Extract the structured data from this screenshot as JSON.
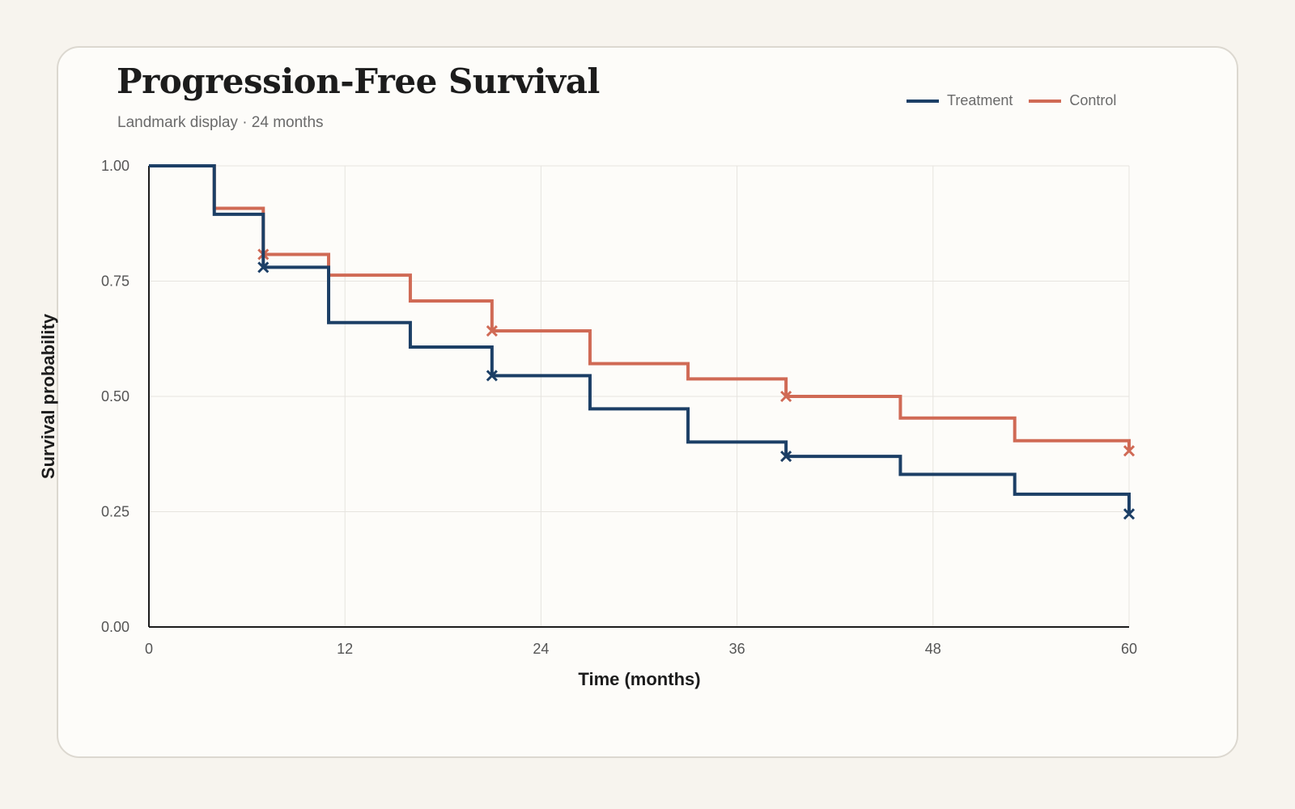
{
  "colors": {
    "background": "#f7f4ee",
    "card": "#fdfcf9",
    "treatment": "#1c3f66",
    "control": "#d06a55",
    "grid": "#e6e4df",
    "axis": "#1c1c1c"
  },
  "chart_data": {
    "type": "line",
    "step": true,
    "title": "Progression-Free Survival",
    "subtitle": "Landmark display · 24 months",
    "xlabel": "Time (months)",
    "ylabel": "Survival probability",
    "xlim": [
      0,
      60
    ],
    "ylim": [
      0,
      1
    ],
    "xticks": [
      "0",
      "12",
      "24",
      "36",
      "48",
      "60"
    ],
    "xtick_values": [
      0,
      12,
      24,
      36,
      48,
      60
    ],
    "yticks": [
      "0.00",
      "0.25",
      "0.50",
      "0.75",
      "1.00"
    ],
    "ytick_values": [
      0,
      0.25,
      0.5,
      0.75,
      1.0
    ],
    "grid": true,
    "legend_position": "top-right",
    "series": [
      {
        "name": "Treatment",
        "color": "#1c3f66",
        "steps": [
          {
            "t": 0,
            "s": 1.0
          },
          {
            "t": 4,
            "s": 0.895
          },
          {
            "t": 7,
            "s": 0.78
          },
          {
            "t": 11,
            "s": 0.66
          },
          {
            "t": 16,
            "s": 0.607
          },
          {
            "t": 21,
            "s": 0.545
          },
          {
            "t": 27,
            "s": 0.473
          },
          {
            "t": 33,
            "s": 0.401
          },
          {
            "t": 39,
            "s": 0.37
          },
          {
            "t": 46,
            "s": 0.331
          },
          {
            "t": 53,
            "s": 0.288
          },
          {
            "t": 60,
            "s": 0.245
          }
        ],
        "censored": [
          {
            "t": 7,
            "s": 0.78
          },
          {
            "t": 21,
            "s": 0.545
          },
          {
            "t": 39,
            "s": 0.37
          },
          {
            "t": 60,
            "s": 0.245
          }
        ]
      },
      {
        "name": "Control",
        "color": "#d06a55",
        "steps": [
          {
            "t": 0,
            "s": 1.0
          },
          {
            "t": 4,
            "s": 0.908
          },
          {
            "t": 7,
            "s": 0.808
          },
          {
            "t": 11,
            "s": 0.763
          },
          {
            "t": 16,
            "s": 0.707
          },
          {
            "t": 21,
            "s": 0.642
          },
          {
            "t": 27,
            "s": 0.571
          },
          {
            "t": 33,
            "s": 0.538
          },
          {
            "t": 39,
            "s": 0.5
          },
          {
            "t": 46,
            "s": 0.453
          },
          {
            "t": 53,
            "s": 0.404
          },
          {
            "t": 60,
            "s": 0.382
          }
        ],
        "censored": [
          {
            "t": 7,
            "s": 0.808
          },
          {
            "t": 21,
            "s": 0.642
          },
          {
            "t": 39,
            "s": 0.5
          },
          {
            "t": 60,
            "s": 0.382
          }
        ]
      }
    ]
  }
}
